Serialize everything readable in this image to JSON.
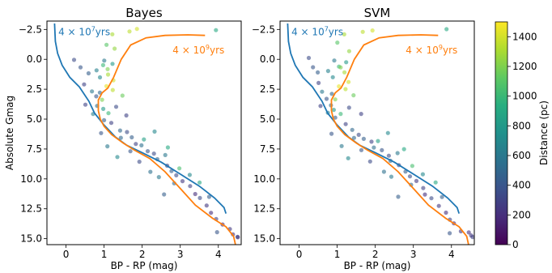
{
  "chart_data": {
    "type": "scatter",
    "panels": [
      {
        "title": "Bayes",
        "seed": 11
      },
      {
        "title": "SVM",
        "seed": 29
      }
    ],
    "xlabel": "BP - RP (mag)",
    "ylabel": "Absolute Gmag",
    "xlim": [
      -0.5,
      4.6
    ],
    "ylim": [
      15.5,
      -3.2
    ],
    "y_inverted": true,
    "xticks": [
      0,
      1,
      2,
      3,
      4
    ],
    "xtick_labels": [
      "0",
      "1",
      "2",
      "3",
      "4"
    ],
    "yticks": [
      -2.5,
      0.0,
      2.5,
      5.0,
      7.5,
      10.0,
      12.5,
      15.0
    ],
    "ytick_labels": [
      "−2.5",
      "0.0",
      "2.5",
      "5.0",
      "7.5",
      "10.0",
      "12.5",
      "15.0"
    ],
    "colorbar": {
      "label": "Distance (pc)",
      "min": 0,
      "max": 1500,
      "ticks": [
        0,
        200,
        400,
        600,
        800,
        1000,
        1200,
        1400
      ],
      "tick_labels": [
        "0",
        "200",
        "400",
        "600",
        "800",
        "1000",
        "1200",
        "1400"
      ],
      "colormap": "viridis"
    },
    "isochrones": [
      {
        "label_base": "4 × 10",
        "label_exp": "7",
        "label_unit": "yrs",
        "color": "#1f77b4",
        "label_pos": [
          -0.2,
          -2.0
        ],
        "points": [
          [
            -0.3,
            -3.0
          ],
          [
            -0.28,
            -1.5
          ],
          [
            -0.22,
            -0.5
          ],
          [
            -0.1,
            0.5
          ],
          [
            0.1,
            1.5
          ],
          [
            0.35,
            2.3
          ],
          [
            0.6,
            3.5
          ],
          [
            0.75,
            4.5
          ],
          [
            1.0,
            5.5
          ],
          [
            1.3,
            6.5
          ],
          [
            1.6,
            7.2
          ],
          [
            2.0,
            7.8
          ],
          [
            2.5,
            8.6
          ],
          [
            3.0,
            9.6
          ],
          [
            3.5,
            10.6
          ],
          [
            3.9,
            11.6
          ],
          [
            4.15,
            12.4
          ],
          [
            4.2,
            12.9
          ]
        ]
      },
      {
        "label_base": "4 × 10",
        "label_exp": "9",
        "label_unit": "yrs",
        "color": "#ff7f0e",
        "label_pos": [
          2.8,
          -0.5
        ],
        "points": [
          [
            3.65,
            -2.0
          ],
          [
            3.2,
            -2.05
          ],
          [
            2.6,
            -2.0
          ],
          [
            2.1,
            -1.8
          ],
          [
            1.7,
            -1.2
          ],
          [
            1.45,
            0.0
          ],
          [
            1.25,
            1.5
          ],
          [
            1.1,
            2.4
          ],
          [
            0.95,
            2.8
          ],
          [
            0.85,
            3.4
          ],
          [
            0.85,
            4.3
          ],
          [
            0.9,
            5.0
          ],
          [
            1.0,
            5.6
          ],
          [
            1.2,
            6.3
          ],
          [
            1.5,
            7.0
          ],
          [
            1.8,
            7.6
          ],
          [
            2.2,
            8.3
          ],
          [
            2.6,
            9.4
          ],
          [
            3.0,
            10.8
          ],
          [
            3.4,
            12.2
          ],
          [
            3.85,
            13.3
          ],
          [
            4.2,
            14.0
          ],
          [
            4.4,
            14.8
          ],
          [
            4.45,
            15.5
          ]
        ]
      }
    ],
    "scatter_points": [
      {
        "x": 1.2,
        "y": -2.2,
        "distance": 1300
      },
      {
        "x": 1.3,
        "y": -0.8,
        "distance": 1250
      },
      {
        "x": 1.7,
        "y": -2.4,
        "distance": 1350
      },
      {
        "x": 1.9,
        "y": -2.5,
        "distance": 1400
      },
      {
        "x": 3.9,
        "y": -2.4,
        "distance": 900
      },
      {
        "x": 1.05,
        "y": -1.3,
        "distance": 1100
      },
      {
        "x": 0.95,
        "y": 0.1,
        "distance": 600
      },
      {
        "x": 1.0,
        "y": 0.5,
        "distance": 1000
      },
      {
        "x": 1.1,
        "y": 0.8,
        "distance": 1200
      },
      {
        "x": 1.25,
        "y": 0.3,
        "distance": 800
      },
      {
        "x": 1.15,
        "y": 1.2,
        "distance": 1300
      },
      {
        "x": 1.3,
        "y": 1.8,
        "distance": 1400
      },
      {
        "x": 0.9,
        "y": 1.5,
        "distance": 700
      },
      {
        "x": 1.05,
        "y": 2.2,
        "distance": 1450
      },
      {
        "x": 1.2,
        "y": 2.6,
        "distance": 1350
      },
      {
        "x": 0.85,
        "y": 2.9,
        "distance": 500
      },
      {
        "x": 1.0,
        "y": 3.4,
        "distance": 1200
      },
      {
        "x": 0.75,
        "y": 3.2,
        "distance": 400
      },
      {
        "x": 1.45,
        "y": 3.0,
        "distance": 1150
      },
      {
        "x": 0.55,
        "y": 1.2,
        "distance": 450
      },
      {
        "x": 0.35,
        "y": 0.6,
        "distance": 400
      },
      {
        "x": 0.2,
        "y": 0.0,
        "distance": 350
      },
      {
        "x": 0.5,
        "y": 2.0,
        "distance": 300
      },
      {
        "x": 0.65,
        "y": 2.6,
        "distance": 600
      },
      {
        "x": 0.8,
        "y": 3.9,
        "distance": 550
      },
      {
        "x": 0.95,
        "y": 4.2,
        "distance": 800
      },
      {
        "x": 1.15,
        "y": 4.5,
        "distance": 1000
      },
      {
        "x": 1.35,
        "y": 4.0,
        "distance": 350
      },
      {
        "x": 1.0,
        "y": 5.0,
        "distance": 450
      },
      {
        "x": 1.2,
        "y": 5.4,
        "distance": 300
      },
      {
        "x": 1.4,
        "y": 5.9,
        "distance": 500
      },
      {
        "x": 1.55,
        "y": 6.2,
        "distance": 350
      },
      {
        "x": 1.7,
        "y": 6.6,
        "distance": 450
      },
      {
        "x": 1.85,
        "y": 7.0,
        "distance": 300
      },
      {
        "x": 2.0,
        "y": 7.3,
        "distance": 550
      },
      {
        "x": 2.15,
        "y": 7.6,
        "distance": 400
      },
      {
        "x": 2.3,
        "y": 8.0,
        "distance": 350
      },
      {
        "x": 2.45,
        "y": 8.4,
        "distance": 500
      },
      {
        "x": 2.6,
        "y": 8.9,
        "distance": 300
      },
      {
        "x": 2.75,
        "y": 9.3,
        "distance": 450
      },
      {
        "x": 2.9,
        "y": 9.8,
        "distance": 350
      },
      {
        "x": 3.05,
        "y": 10.2,
        "distance": 250
      },
      {
        "x": 3.2,
        "y": 10.7,
        "distance": 300
      },
      {
        "x": 3.35,
        "y": 11.2,
        "distance": 200
      },
      {
        "x": 3.5,
        "y": 11.7,
        "distance": 350
      },
      {
        "x": 3.65,
        "y": 12.2,
        "distance": 250
      },
      {
        "x": 3.8,
        "y": 12.8,
        "distance": 200
      },
      {
        "x": 3.95,
        "y": 13.3,
        "distance": 300
      },
      {
        "x": 4.1,
        "y": 13.8,
        "distance": 150
      },
      {
        "x": 4.25,
        "y": 14.3,
        "distance": 250
      },
      {
        "x": 4.4,
        "y": 14.6,
        "distance": 200
      },
      {
        "x": 4.5,
        "y": 14.9,
        "distance": 300
      },
      {
        "x": 2.7,
        "y": 7.4,
        "distance": 900
      },
      {
        "x": 2.3,
        "y": 6.1,
        "distance": 700
      },
      {
        "x": 2.1,
        "y": 6.8,
        "distance": 850
      },
      {
        "x": 2.55,
        "y": 7.9,
        "distance": 600
      },
      {
        "x": 1.65,
        "y": 7.6,
        "distance": 400
      },
      {
        "x": 1.45,
        "y": 6.6,
        "distance": 500
      },
      {
        "x": 3.0,
        "y": 9.0,
        "distance": 1050
      },
      {
        "x": 3.3,
        "y": 9.6,
        "distance": 700
      },
      {
        "x": 2.9,
        "y": 10.4,
        "distance": 500
      },
      {
        "x": 2.2,
        "y": 9.3,
        "distance": 550
      },
      {
        "x": 1.9,
        "y": 8.6,
        "distance": 350
      },
      {
        "x": 3.55,
        "y": 10.3,
        "distance": 900
      },
      {
        "x": 2.6,
        "y": 11.4,
        "distance": 450
      },
      {
        "x": 3.8,
        "y": 11.4,
        "distance": 450
      },
      {
        "x": 0.55,
        "y": 3.9,
        "distance": 300
      },
      {
        "x": 0.7,
        "y": 4.5,
        "distance": 650
      },
      {
        "x": 0.9,
        "y": 6.1,
        "distance": 400
      },
      {
        "x": 1.1,
        "y": 7.3,
        "distance": 600
      },
      {
        "x": 1.3,
        "y": 8.2,
        "distance": 700
      },
      {
        "x": 3.95,
        "y": 14.5,
        "distance": 400
      },
      {
        "x": 4.55,
        "y": 14.8,
        "distance": 250
      },
      {
        "x": 0.8,
        "y": 1.0,
        "distance": 650
      },
      {
        "x": 1.6,
        "y": 4.6,
        "distance": 300
      },
      {
        "x": 2.4,
        "y": 9.8,
        "distance": 600
      }
    ]
  }
}
